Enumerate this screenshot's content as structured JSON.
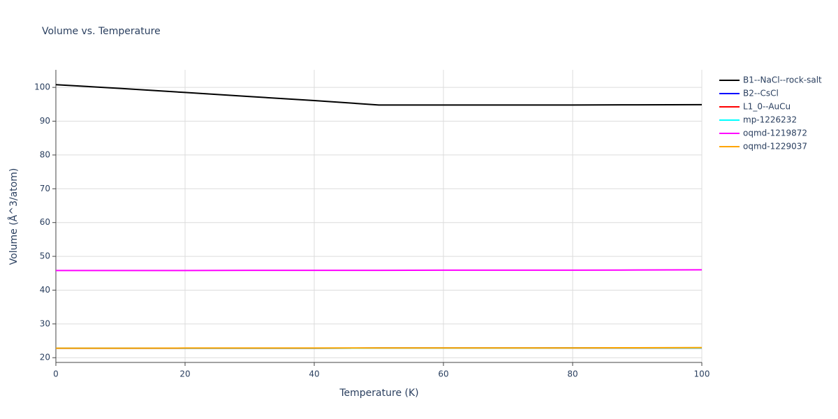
{
  "chart_data": {
    "type": "line",
    "title": "Volume vs. Temperature",
    "x_label": "Temperature (K)",
    "y_label": "Volume (Å^3/atom)",
    "x": [
      0,
      10,
      20,
      30,
      40,
      50,
      60,
      70,
      80,
      90,
      100
    ],
    "series": [
      {
        "name": "B1--NaCl--rock-salt",
        "color": "#000000",
        "values": [
          100.8,
          99.7,
          98.5,
          97.3,
          96.1,
          94.8,
          94.8,
          94.8,
          94.8,
          94.85,
          94.9
        ]
      },
      {
        "name": "B2--CsCl",
        "color": "#0000ff",
        "values": [
          22.8,
          22.8,
          22.8,
          22.8,
          22.8,
          22.85,
          22.85,
          22.85,
          22.9,
          22.9,
          22.9
        ]
      },
      {
        "name": "L1_0--AuCu",
        "color": "#ff0000",
        "values": [
          22.8,
          22.8,
          22.8,
          22.8,
          22.8,
          22.85,
          22.85,
          22.85,
          22.9,
          22.9,
          22.9
        ]
      },
      {
        "name": "mp-1226232",
        "color": "#00ffff",
        "values": [
          22.8,
          22.8,
          22.8,
          22.8,
          22.8,
          22.85,
          22.85,
          22.85,
          22.9,
          22.9,
          22.9
        ]
      },
      {
        "name": "oqmd-1219872",
        "color": "#ff00ff",
        "values": [
          45.8,
          45.8,
          45.8,
          45.85,
          45.85,
          45.85,
          45.9,
          45.9,
          45.9,
          45.95,
          46.0
        ]
      },
      {
        "name": "oqmd-1229037",
        "color": "#ffa500",
        "values": [
          22.8,
          22.8,
          22.85,
          22.85,
          22.85,
          22.9,
          22.9,
          22.9,
          22.9,
          22.95,
          23.0
        ]
      }
    ],
    "xlim": [
      0,
      100
    ],
    "xticks": [
      0,
      20,
      40,
      60,
      80,
      100
    ],
    "ylim": [
      18.6,
      105.2
    ],
    "yticks": [
      20,
      30,
      40,
      50,
      60,
      70,
      80,
      90,
      100
    ],
    "grid": true,
    "legend": "top-right"
  }
}
